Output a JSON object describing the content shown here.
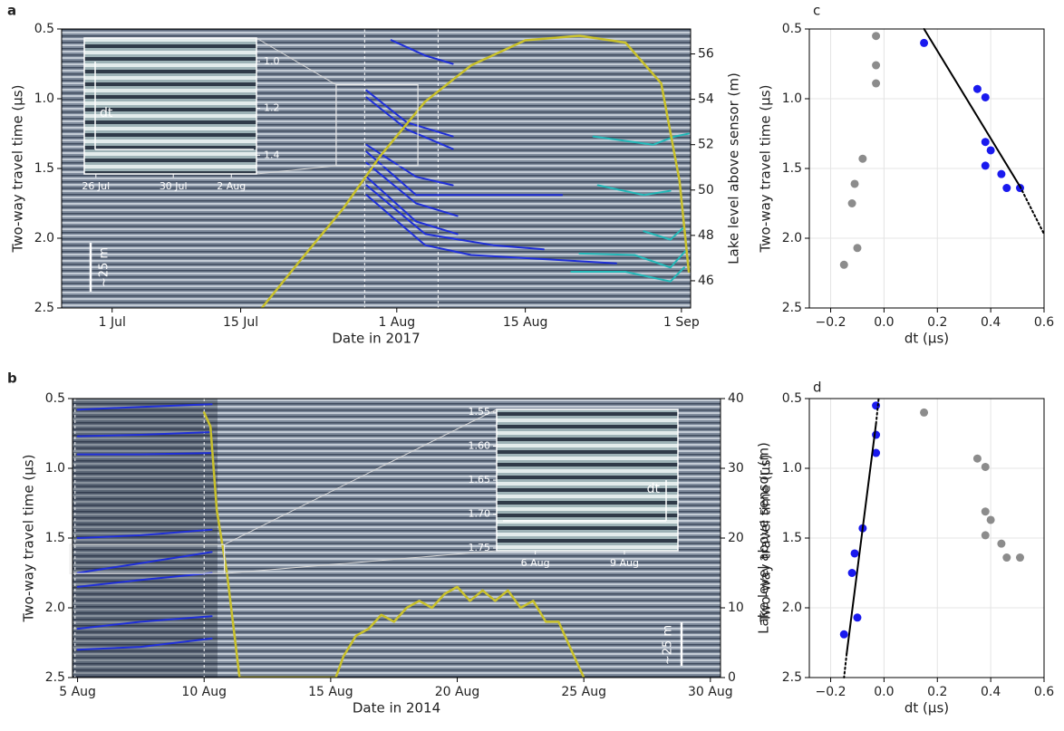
{
  "chart_data": [
    {
      "type": "line",
      "panel_label": "a",
      "xlabel": "Date in 2017",
      "ylabel": "Two-way travel time (μs)",
      "y2label": "Lake level above sensor (m)",
      "xlim": [
        176.5,
        245
      ],
      "xticks": [
        {
          "value": 182,
          "label": "1 Jul"
        },
        {
          "value": 196,
          "label": "15 Jul"
        },
        {
          "value": 213,
          "label": "1 Aug"
        },
        {
          "value": 227,
          "label": "15 Aug"
        },
        {
          "value": 244,
          "label": "1 Sep"
        }
      ],
      "ylim": [
        2.5,
        0.5
      ],
      "yticks": [
        0.5,
        {
          "value": 1,
          "label": "1.0"
        },
        1.5,
        {
          "value": 2,
          "label": "2.0"
        },
        2.5
      ],
      "y2lim": [
        44.8,
        57.1
      ],
      "y2ticks": [
        46,
        48,
        50,
        52,
        54,
        56
      ],
      "vlines": [
        209.5,
        217.5
      ],
      "scale_bar": "~25 m",
      "series": [
        {
          "color": "#1f2fd8",
          "x": [
            212.4,
            216.1,
            219.1
          ],
          "values": [
            0.58,
            0.69,
            0.75
          ]
        },
        {
          "color": "#1f2fd8",
          "x": [
            209.7,
            214.1,
            219.1
          ],
          "values": [
            0.94,
            1.17,
            1.27
          ]
        },
        {
          "color": "#1f2fd8",
          "x": [
            209.7,
            214.1,
            219.1
          ],
          "values": [
            0.99,
            1.22,
            1.36
          ]
        },
        {
          "color": "#1f2fd8",
          "x": [
            209.7,
            215.1,
            219.1
          ],
          "values": [
            1.33,
            1.56,
            1.62
          ]
        },
        {
          "color": "#1f2fd8",
          "x": [
            209.7,
            215.1,
            231.0
          ],
          "values": [
            1.38,
            1.69,
            1.69
          ]
        },
        {
          "color": "#1f2fd8",
          "x": [
            209.7,
            215.1,
            219.6
          ],
          "values": [
            1.46,
            1.75,
            1.84
          ]
        },
        {
          "color": "#1f2fd8",
          "x": [
            209.7,
            215.1,
            219.6
          ],
          "values": [
            1.56,
            1.88,
            1.97
          ]
        },
        {
          "color": "#1f2fd8",
          "x": [
            209.7,
            216.1,
            223.5,
            229.0
          ],
          "values": [
            1.62,
            1.97,
            2.05,
            2.08
          ]
        },
        {
          "color": "#1f2fd8",
          "x": [
            209.7,
            216.1,
            221.1,
            236.9
          ],
          "values": [
            1.69,
            2.05,
            2.12,
            2.18
          ]
        },
        {
          "color": "#22b8b8",
          "x": [
            234.4,
            240.9,
            243.3,
            244.8
          ],
          "values": [
            1.27,
            1.33,
            1.27,
            1.25
          ]
        },
        {
          "color": "#22b8b8",
          "x": [
            234.9,
            239.9,
            242.8
          ],
          "values": [
            1.62,
            1.69,
            1.66
          ]
        },
        {
          "color": "#22b8b8",
          "x": [
            239.9,
            242.8,
            244.3
          ],
          "values": [
            1.95,
            2.01,
            1.92
          ]
        },
        {
          "color": "#22b8b8",
          "x": [
            232.9,
            238.9,
            242.8,
            244.6
          ],
          "values": [
            2.11,
            2.12,
            2.21,
            2.08
          ]
        },
        {
          "color": "#22b8b8",
          "x": [
            232.0,
            237.9,
            242.8,
            244.3
          ],
          "values": [
            2.24,
            2.24,
            2.31,
            2.21
          ]
        },
        {
          "color": "#c9c12a",
          "axis": "y2",
          "x": [
            198.3,
            202.3,
            207.2,
            211.2,
            216.1,
            221.1,
            227.0,
            232.9,
            237.9,
            241.8,
            243.8,
            244.8
          ],
          "values": [
            44.8,
            46.8,
            49.2,
            51.5,
            53.9,
            55.5,
            56.6,
            56.8,
            56.5,
            54.7,
            50.4,
            46.4
          ]
        }
      ],
      "inset": {
        "xlim": [
          206.4,
          215.3
        ],
        "xticks": [
          {
            "value": 207,
            "label": "26 Jul"
          },
          {
            "value": 211,
            "label": "30 Jul"
          },
          {
            "value": 214,
            "label": "2 Aug"
          }
        ],
        "ylim": [
          1.48,
          0.9
        ],
        "yticks": [
          {
            "value": 1,
            "label": "1.0"
          },
          1.2,
          1.4
        ],
        "label": "dt"
      }
    },
    {
      "type": "scatter",
      "panel_label": "c",
      "xlabel": "dt (μs)",
      "ylabel": "Two-way travel time (μs)",
      "xlim": [
        -0.28,
        0.6
      ],
      "xticks": [
        {
          "value": -0.2,
          "label": "−0.2"
        },
        {
          "value": 0,
          "label": "0.0"
        },
        0.2,
        0.4,
        0.6
      ],
      "ylim": [
        2.5,
        0.5
      ],
      "yticks": [
        0.5,
        {
          "value": 1,
          "label": "1.0"
        },
        1.5,
        {
          "value": 2,
          "label": "2.0"
        },
        2.5
      ],
      "grid": true,
      "series": [
        {
          "color": "#8c8c8c",
          "x": [
            -0.03,
            -0.03,
            -0.03,
            -0.08,
            -0.11,
            -0.12,
            -0.1,
            -0.15
          ],
          "values": [
            0.55,
            0.76,
            0.89,
            1.43,
            1.61,
            1.75,
            2.07,
            2.19
          ]
        },
        {
          "color": "#1a1aee",
          "x": [
            0.15,
            0.35,
            0.38,
            0.38,
            0.4,
            0.38,
            0.44,
            0.46,
            0.51
          ],
          "values": [
            0.6,
            0.93,
            0.99,
            1.31,
            1.37,
            1.48,
            1.54,
            1.64,
            1.64
          ]
        },
        {
          "color": "#000000",
          "mode": "line",
          "x": [
            0.15,
            0.51
          ],
          "values": [
            0.5,
            1.63
          ]
        },
        {
          "color": "#000000",
          "mode": "line",
          "dash": "dotted",
          "x": [
            0.51,
            0.6
          ],
          "values": [
            1.63,
            1.97
          ]
        }
      ]
    },
    {
      "type": "line",
      "panel_label": "b",
      "xlabel": "Date in 2014",
      "ylabel": "Two-way travel time (μs)",
      "y2label": "Lake level above sensor (m)",
      "xlim": [
        4.8,
        30.4
      ],
      "xticks": [
        {
          "value": 5,
          "label": "5 Aug"
        },
        {
          "value": 10,
          "label": "10 Aug"
        },
        {
          "value": 15,
          "label": "15 Aug"
        },
        {
          "value": 20,
          "label": "20 Aug"
        },
        {
          "value": 25,
          "label": "25 Aug"
        },
        {
          "value": 30,
          "label": "30 Aug"
        }
      ],
      "ylim": [
        2.5,
        0.5
      ],
      "yticks": [
        0.5,
        {
          "value": 1,
          "label": "1.0"
        },
        1.5,
        {
          "value": 2,
          "label": "2.0"
        },
        2.5
      ],
      "y2lim": [
        0,
        40
      ],
      "y2ticks": [
        0,
        10,
        20,
        30,
        40
      ],
      "vlines": [
        4.9,
        10
      ],
      "scale_bar": "~25 m",
      "series": [
        {
          "color": "#1f2fd8",
          "x": [
            5,
            7.5,
            10.3
          ],
          "values": [
            0.58,
            0.56,
            0.54
          ]
        },
        {
          "color": "#1f2fd8",
          "x": [
            5,
            7.5,
            10.3
          ],
          "values": [
            0.77,
            0.76,
            0.74
          ]
        },
        {
          "color": "#1f2fd8",
          "x": [
            5,
            7.5,
            10.3
          ],
          "values": [
            0.9,
            0.9,
            0.89
          ]
        },
        {
          "color": "#1f2fd8",
          "x": [
            5,
            7.5,
            10.3
          ],
          "values": [
            1.5,
            1.48,
            1.44
          ]
        },
        {
          "color": "#1f2fd8",
          "x": [
            5,
            7.5,
            10.3
          ],
          "values": [
            1.75,
            1.68,
            1.6
          ]
        },
        {
          "color": "#1f2fd8",
          "x": [
            5,
            7.5,
            10.3
          ],
          "values": [
            1.85,
            1.8,
            1.75
          ]
        },
        {
          "color": "#1f2fd8",
          "x": [
            5,
            7.5,
            10.3
          ],
          "values": [
            2.15,
            2.1,
            2.06
          ]
        },
        {
          "color": "#1f2fd8",
          "x": [
            5,
            7.5,
            10.3
          ],
          "values": [
            2.3,
            2.28,
            2.22
          ]
        },
        {
          "color": "#c9c12a",
          "axis": "y2",
          "x": [
            10,
            10.25,
            10.5,
            10.9,
            11.2,
            11.4,
            15.2,
            15.5,
            16,
            16.5,
            17,
            17.5,
            18,
            18.5,
            19,
            19.5,
            20,
            20.5,
            21,
            21.5,
            22,
            22.5,
            23,
            23.5,
            24,
            24.5,
            25
          ],
          "values": [
            38,
            36,
            24,
            15,
            6,
            0,
            0,
            3,
            6,
            7,
            9,
            8,
            10,
            11,
            10,
            12,
            13,
            11,
            12.5,
            11,
            12.5,
            10,
            11,
            8,
            8,
            4,
            0
          ]
        }
      ],
      "inset": {
        "xlim": [
          4.7,
          10.8
        ],
        "xticks": [
          {
            "value": 6,
            "label": "6 Aug"
          },
          {
            "value": 9,
            "label": "9 Aug"
          }
        ],
        "ylim": [
          1.754,
          1.546
        ],
        "yticks": [
          1.55,
          {
            "value": 1.6,
            "label": "1.60"
          },
          1.65,
          {
            "value": 1.7,
            "label": "1.70"
          },
          1.75
        ],
        "label": "dt"
      }
    },
    {
      "type": "scatter",
      "panel_label": "d",
      "xlabel": "dt (μs)",
      "ylabel": "Two-way travel time (μs)",
      "xlim": [
        -0.28,
        0.6
      ],
      "xticks": [
        {
          "value": -0.2,
          "label": "−0.2"
        },
        {
          "value": 0,
          "label": "0.0"
        },
        0.2,
        0.4,
        0.6
      ],
      "ylim": [
        2.5,
        0.5
      ],
      "yticks": [
        0.5,
        {
          "value": 1,
          "label": "1.0"
        },
        1.5,
        {
          "value": 2,
          "label": "2.0"
        },
        2.5
      ],
      "grid": true,
      "series": [
        {
          "color": "#8c8c8c",
          "x": [
            0.15,
            0.35,
            0.38,
            0.38,
            0.4,
            0.38,
            0.44,
            0.46,
            0.51
          ],
          "values": [
            0.6,
            0.93,
            0.99,
            1.31,
            1.37,
            1.48,
            1.54,
            1.64,
            1.64
          ]
        },
        {
          "color": "#1a1aee",
          "x": [
            -0.03,
            -0.03,
            -0.03,
            -0.08,
            -0.11,
            -0.12,
            -0.1,
            -0.15
          ],
          "values": [
            0.55,
            0.76,
            0.89,
            1.43,
            1.61,
            1.75,
            2.07,
            2.19
          ]
        },
        {
          "color": "#000000",
          "mode": "line",
          "x": [
            -0.14,
            -0.03
          ],
          "values": [
            2.33,
            0.68
          ]
        },
        {
          "color": "#000000",
          "mode": "line",
          "dash": "dotted",
          "x": [
            -0.03,
            -0.02
          ],
          "values": [
            0.68,
            0.5
          ]
        },
        {
          "color": "#000000",
          "mode": "line",
          "dash": "dotted",
          "x": [
            -0.14,
            -0.15
          ],
          "values": [
            2.33,
            2.5
          ]
        }
      ]
    }
  ]
}
